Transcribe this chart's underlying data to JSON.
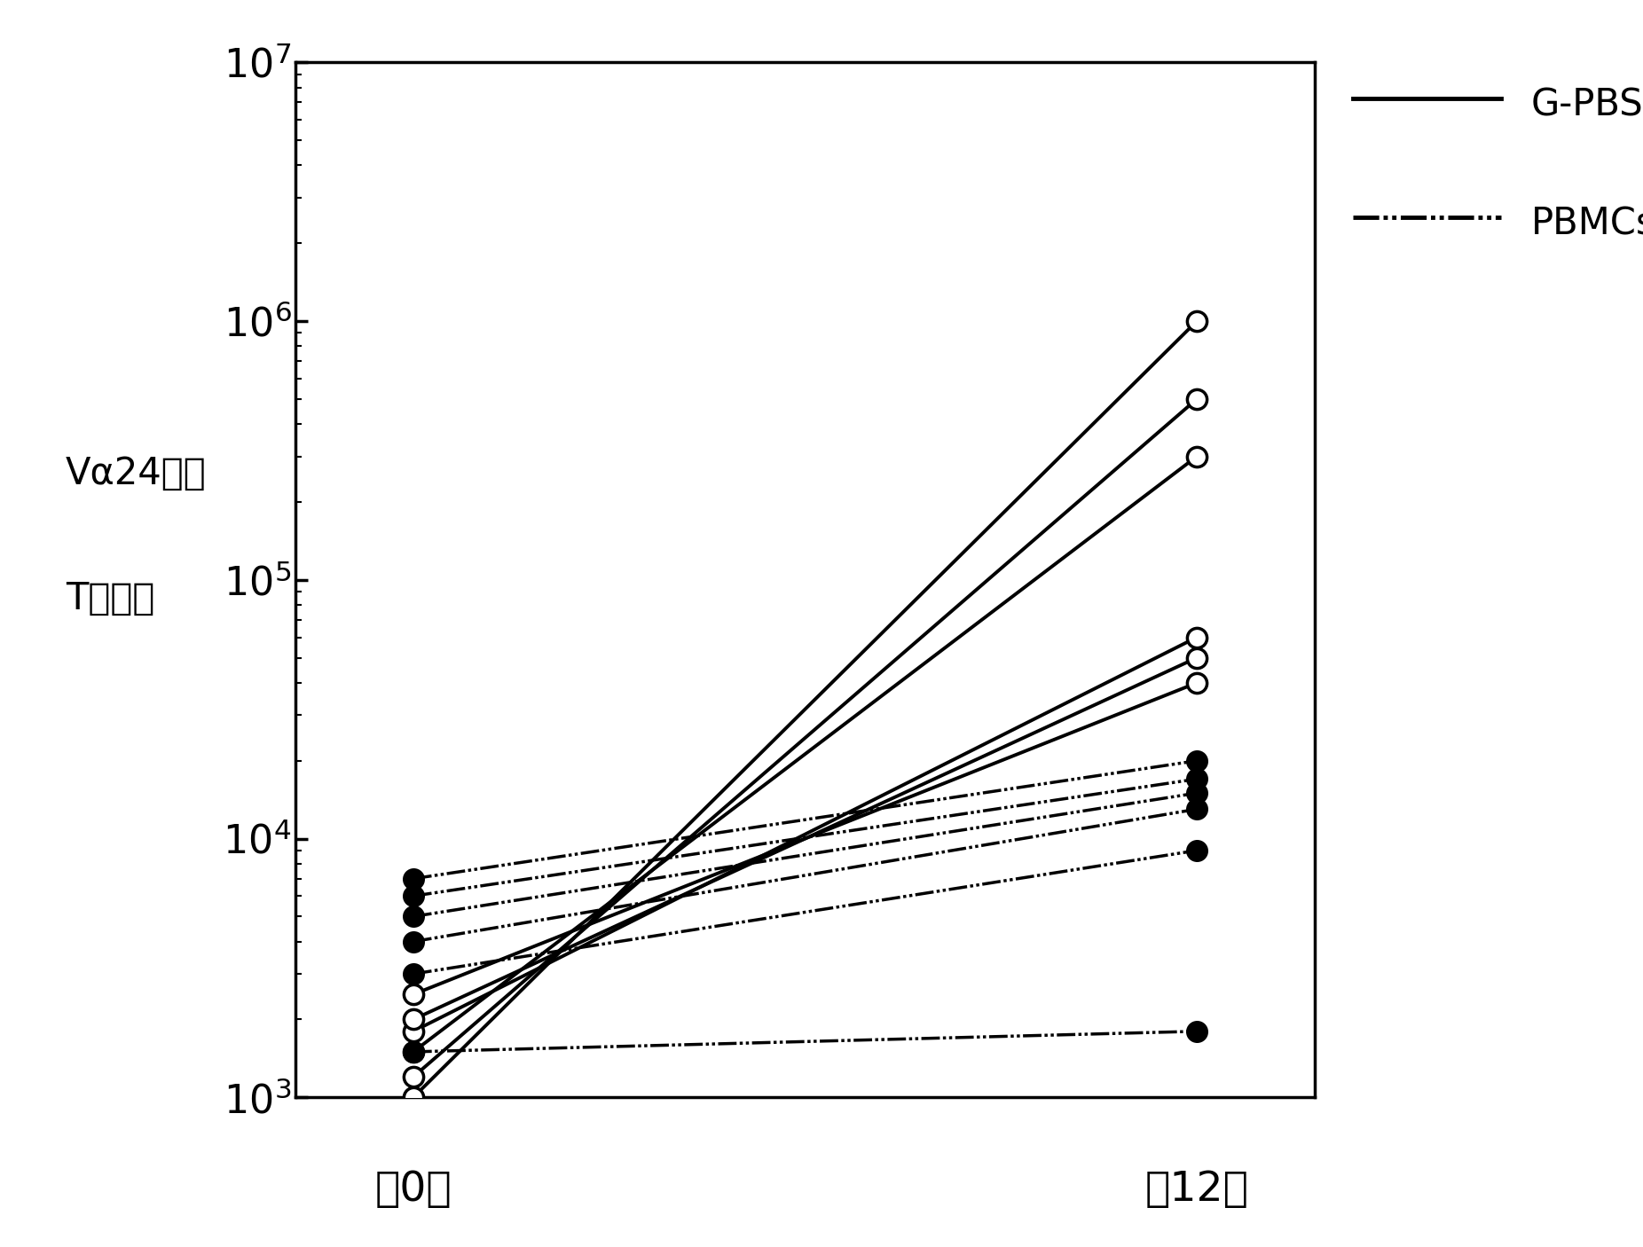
{
  "xlabel_day0": "第0天",
  "xlabel_day12": "第12天",
  "ylabel_line1": "Vα24阳性",
  "ylabel_line2": "T细胞数",
  "x_positions": [
    0,
    1
  ],
  "gpbsc_series": [
    [
      1000,
      1000000
    ],
    [
      1200,
      500000
    ],
    [
      1500,
      300000
    ],
    [
      1800,
      60000
    ],
    [
      2000,
      50000
    ],
    [
      2500,
      40000
    ]
  ],
  "pbmc_series": [
    [
      7000,
      20000
    ],
    [
      6000,
      17000
    ],
    [
      5000,
      15000
    ],
    [
      4000,
      13000
    ],
    [
      3000,
      9000
    ],
    [
      1500,
      1800
    ]
  ],
  "ylim": [
    1000,
    10000000
  ],
  "background_color": "#ffffff",
  "line_color": "#000000",
  "legend_gpbsc_label": "G-PBSCs",
  "legend_pbmc_label": "PBMCs"
}
